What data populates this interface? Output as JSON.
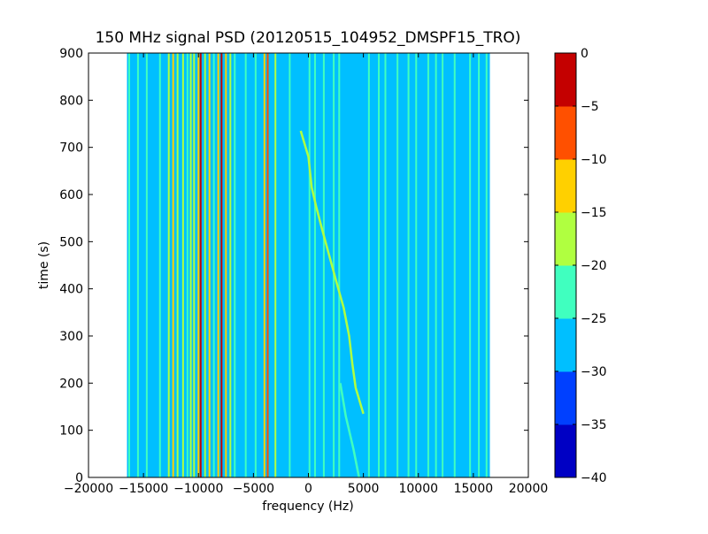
{
  "chart_data": {
    "type": "heatmap",
    "title": "150 MHz signal PSD (20120515_104952_DMSPF15_TRO)",
    "xlabel": "frequency (Hz)",
    "ylabel": "time (s)",
    "xlim": [
      -20000,
      20000
    ],
    "ylim": [
      0,
      900
    ],
    "xticks": [
      -20000,
      -15000,
      -10000,
      -5000,
      0,
      5000,
      10000,
      15000,
      20000
    ],
    "xtick_labels": [
      "−20000",
      "−15000",
      "−10000",
      "−5000",
      "0",
      "5000",
      "10000",
      "15000",
      "20000"
    ],
    "yticks": [
      0,
      100,
      200,
      300,
      400,
      500,
      600,
      700,
      800,
      900
    ],
    "ytick_labels": [
      "0",
      "100",
      "200",
      "300",
      "400",
      "500",
      "600",
      "700",
      "800",
      "900"
    ],
    "data_extent_hz": [
      -16500,
      16500
    ],
    "background_level": -27.5,
    "colorbar": {
      "levels": [
        -40,
        -35,
        -30,
        -25,
        -20,
        -15,
        -10,
        -5,
        0
      ],
      "tick_labels": [
        "−40",
        "−35",
        "−30",
        "−25",
        "−20",
        "−15",
        "−10",
        "−5",
        "0"
      ],
      "colors": [
        "#0000c4",
        "#0040ff",
        "#00bfff",
        "#40ffbf",
        "#b0ff40",
        "#ffd000",
        "#ff5000",
        "#c40000"
      ]
    },
    "vertical_lines": [
      {
        "freq": -16300,
        "level": -22
      },
      {
        "freq": -15500,
        "level": -22
      },
      {
        "freq": -14700,
        "level": -22
      },
      {
        "freq": -13500,
        "level": -22
      },
      {
        "freq": -12700,
        "level": -17
      },
      {
        "freq": -12300,
        "level": -12
      },
      {
        "freq": -11900,
        "level": -17
      },
      {
        "freq": -11400,
        "level": -17
      },
      {
        "freq": -11000,
        "level": -22
      },
      {
        "freq": -10700,
        "level": -17
      },
      {
        "freq": -10400,
        "level": -17
      },
      {
        "freq": -10000,
        "level": -12
      },
      {
        "freq": -9800,
        "level": -2
      },
      {
        "freq": -9400,
        "level": -17
      },
      {
        "freq": -9000,
        "level": -12
      },
      {
        "freq": -8600,
        "level": -22
      },
      {
        "freq": -8200,
        "level": -12
      },
      {
        "freq": -7900,
        "level": -2
      },
      {
        "freq": -7500,
        "level": -12
      },
      {
        "freq": -7100,
        "level": -17
      },
      {
        "freq": -6700,
        "level": -22
      },
      {
        "freq": -5700,
        "level": -22
      },
      {
        "freq": -4800,
        "level": -22
      },
      {
        "freq": -4000,
        "level": -12
      },
      {
        "freq": -3700,
        "level": -7
      },
      {
        "freq": -3000,
        "level": -17
      },
      {
        "freq": -1700,
        "level": -22
      },
      {
        "freq": 100,
        "level": -22
      },
      {
        "freq": 600,
        "level": -22
      },
      {
        "freq": 1400,
        "level": -22
      },
      {
        "freq": 2300,
        "level": -22
      },
      {
        "freq": 2800,
        "level": -22
      },
      {
        "freq": 5500,
        "level": -22
      },
      {
        "freq": 6400,
        "level": -22
      },
      {
        "freq": 7000,
        "level": -22
      },
      {
        "freq": 8100,
        "level": -22
      },
      {
        "freq": 9100,
        "level": -22
      },
      {
        "freq": 9800,
        "level": -22
      },
      {
        "freq": 10900,
        "level": -22
      },
      {
        "freq": 11600,
        "level": -22
      },
      {
        "freq": 12200,
        "level": -22
      },
      {
        "freq": 13300,
        "level": -22
      },
      {
        "freq": 14700,
        "level": -22
      },
      {
        "freq": 15500,
        "level": -22
      },
      {
        "freq": 16200,
        "level": -22
      }
    ],
    "doppler_curve": {
      "level": -17,
      "points": [
        [
          -700,
          735
        ],
        [
          0,
          680
        ],
        [
          300,
          615
        ],
        [
          700,
          575
        ],
        [
          1200,
          530
        ],
        [
          1900,
          470
        ],
        [
          2600,
          410
        ],
        [
          3200,
          360
        ],
        [
          3700,
          300
        ],
        [
          4000,
          240
        ],
        [
          4300,
          190
        ],
        [
          5000,
          135
        ]
      ]
    },
    "lower_trace": {
      "level": -22,
      "points": [
        [
          2900,
          200
        ],
        [
          3400,
          130
        ],
        [
          4100,
          60
        ],
        [
          4600,
          0
        ]
      ]
    }
  }
}
